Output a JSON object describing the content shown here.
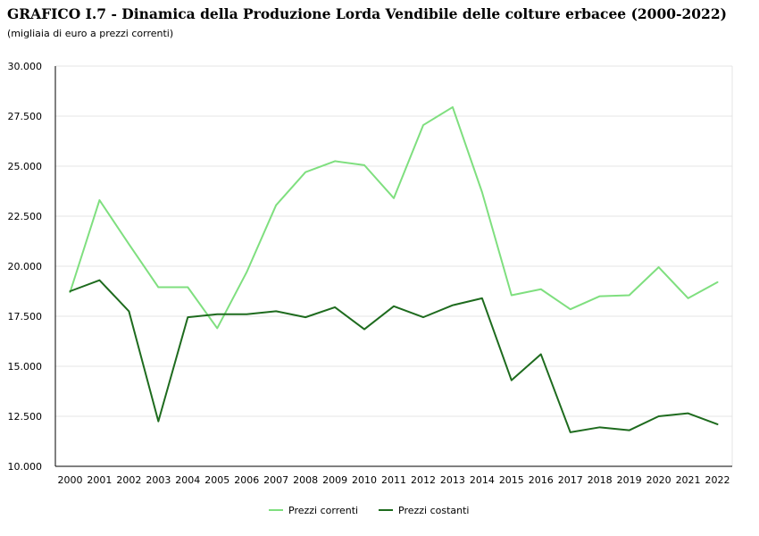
{
  "header": {
    "title": "GRAFICO I.7 - Dinamica della Produzione Lorda Vendibile delle colture erbacee (2000-2022)",
    "subtitle": "(migliaia di euro a prezzi correnti)"
  },
  "chart_data": {
    "type": "line",
    "title": "GRAFICO I.7 - Dinamica della Produzione Lorda Vendibile delle colture erbacee (2000-2022)",
    "subtitle": "(migliaia di euro a prezzi correnti)",
    "xlabel": "",
    "ylabel": "",
    "x": [
      "2000",
      "2001",
      "2002",
      "2003",
      "2004",
      "2005",
      "2006",
      "2007",
      "2008",
      "2009",
      "2010",
      "2011",
      "2012",
      "2013",
      "2014",
      "2015",
      "2016",
      "2017",
      "2018",
      "2019",
      "2020",
      "2021",
      "2022"
    ],
    "ylim": [
      10000,
      30000
    ],
    "yticks": [
      10000,
      12500,
      15000,
      17500,
      20000,
      22500,
      25000,
      27500,
      30000
    ],
    "ytick_labels": [
      "10.000",
      "12.500",
      "15.000",
      "17.500",
      "20.000",
      "22.500",
      "25.000",
      "27.500",
      "30.000"
    ],
    "grid": true,
    "legend_position": "bottom",
    "series": [
      {
        "name": "Prezzi correnti",
        "color": "#7fdf7f",
        "values": [
          18700,
          23300,
          21100,
          18950,
          18950,
          16900,
          19700,
          23050,
          24700,
          25250,
          25050,
          23400,
          27050,
          27950,
          23700,
          18550,
          18850,
          17850,
          18500,
          18550,
          19950,
          18400,
          19200
        ]
      },
      {
        "name": "Prezzi costanti",
        "color": "#1e6b1e",
        "values": [
          18750,
          19300,
          17750,
          12250,
          17450,
          17600,
          17600,
          17750,
          17450,
          17950,
          16850,
          18000,
          17450,
          18050,
          18400,
          14300,
          15600,
          11700,
          11950,
          11800,
          12500,
          12650,
          12100
        ]
      }
    ]
  }
}
